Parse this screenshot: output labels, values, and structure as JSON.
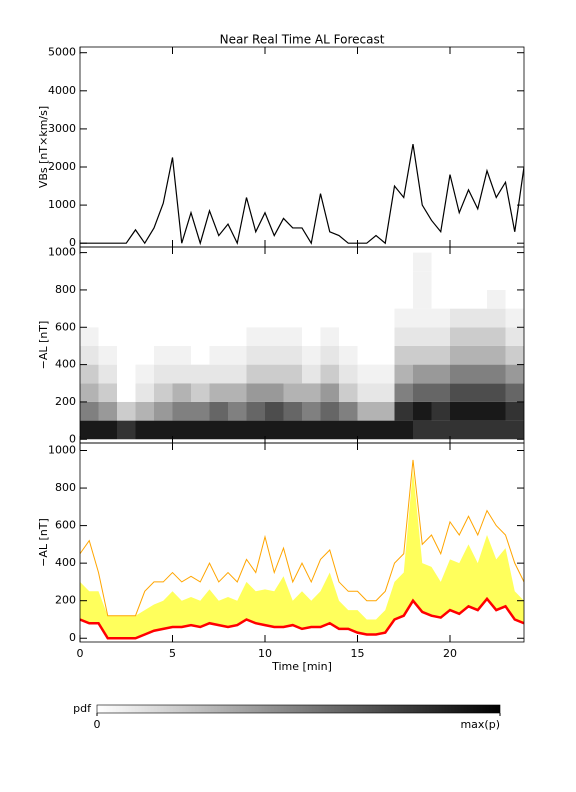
{
  "chart_data": [
    {
      "type": "line",
      "title": "Near Real Time AL Forecast",
      "ylabel": "VBs [nT×km/s]",
      "x": [
        0,
        0.5,
        1,
        1.5,
        2,
        2.5,
        3,
        3.5,
        4,
        4.5,
        5,
        5.5,
        6,
        6.5,
        7,
        7.5,
        8,
        8.5,
        9,
        9.5,
        10,
        10.5,
        11,
        11.5,
        12,
        12.5,
        13,
        13.5,
        14,
        14.5,
        15,
        15.5,
        16,
        16.5,
        17,
        17.5,
        18,
        18.5,
        19,
        19.5,
        20,
        20.5,
        21,
        21.5,
        22,
        22.5,
        23,
        23.5,
        24
      ],
      "values": [
        0,
        0,
        0,
        0,
        0,
        0,
        350,
        0,
        400,
        1050,
        2250,
        0,
        800,
        0,
        850,
        200,
        500,
        0,
        1200,
        300,
        800,
        200,
        650,
        400,
        400,
        0,
        1300,
        300,
        200,
        0,
        0,
        0,
        200,
        0,
        1500,
        1200,
        2600,
        1000,
        600,
        300,
        1800,
        800,
        1400,
        900,
        1900,
        1200,
        1600,
        300,
        2000
      ],
      "color": "#000000",
      "xlim": [
        0,
        24
      ],
      "xticks": [
        0,
        5,
        10,
        15,
        20
      ],
      "ylim": [
        -100,
        5150
      ],
      "yticks": [
        0,
        1000,
        2000,
        3000,
        4000,
        5000
      ]
    },
    {
      "type": "heatmap",
      "ylabel": "−AL [nT]",
      "x_bins": [
        0,
        1,
        2,
        3,
        4,
        5,
        6,
        7,
        8,
        9,
        10,
        11,
        12,
        13,
        14,
        15,
        16,
        17,
        18,
        19,
        20,
        21,
        22,
        23,
        24
      ],
      "y_bins": [
        0,
        100,
        200,
        300,
        400,
        500,
        600,
        700,
        800,
        900,
        1000
      ],
      "z": [
        [
          0.9,
          0.5,
          0.3,
          0.2,
          0.1,
          0.05,
          0,
          0,
          0,
          0
        ],
        [
          0.9,
          0.4,
          0.2,
          0.1,
          0.05,
          0,
          0,
          0,
          0,
          0
        ],
        [
          0.8,
          0.2,
          0,
          0,
          0,
          0,
          0,
          0,
          0,
          0
        ],
        [
          0.9,
          0.3,
          0.1,
          0.05,
          0,
          0,
          0,
          0,
          0,
          0
        ],
        [
          0.9,
          0.4,
          0.2,
          0.1,
          0.05,
          0,
          0,
          0,
          0,
          0
        ],
        [
          0.9,
          0.5,
          0.3,
          0.1,
          0.05,
          0,
          0,
          0,
          0,
          0
        ],
        [
          0.9,
          0.5,
          0.2,
          0.1,
          0,
          0,
          0,
          0,
          0,
          0
        ],
        [
          0.9,
          0.6,
          0.3,
          0.1,
          0.05,
          0,
          0,
          0,
          0,
          0
        ],
        [
          0.9,
          0.5,
          0.3,
          0.1,
          0.05,
          0,
          0,
          0,
          0,
          0
        ],
        [
          0.9,
          0.6,
          0.4,
          0.2,
          0.1,
          0.05,
          0,
          0,
          0,
          0
        ],
        [
          0.9,
          0.7,
          0.4,
          0.2,
          0.1,
          0.05,
          0,
          0,
          0,
          0
        ],
        [
          0.9,
          0.6,
          0.3,
          0.2,
          0.1,
          0.05,
          0,
          0,
          0,
          0
        ],
        [
          0.9,
          0.5,
          0.3,
          0.1,
          0.05,
          0,
          0,
          0,
          0,
          0
        ],
        [
          0.9,
          0.6,
          0.4,
          0.2,
          0.1,
          0.05,
          0,
          0,
          0,
          0
        ],
        [
          0.9,
          0.5,
          0.2,
          0.1,
          0.05,
          0,
          0,
          0,
          0,
          0
        ],
        [
          0.9,
          0.3,
          0.1,
          0.05,
          0,
          0,
          0,
          0,
          0,
          0
        ],
        [
          0.9,
          0.3,
          0.1,
          0.05,
          0,
          0,
          0,
          0,
          0,
          0
        ],
        [
          0.9,
          0.8,
          0.5,
          0.3,
          0.2,
          0.1,
          0.05,
          0,
          0,
          0
        ],
        [
          0.8,
          0.9,
          0.6,
          0.4,
          0.2,
          0.1,
          0.05,
          0.05,
          0.05,
          0.05
        ],
        [
          0.8,
          0.8,
          0.6,
          0.4,
          0.2,
          0.1,
          0.05,
          0,
          0,
          0
        ],
        [
          0.8,
          0.9,
          0.7,
          0.5,
          0.3,
          0.2,
          0.1,
          0,
          0,
          0
        ],
        [
          0.8,
          0.9,
          0.7,
          0.5,
          0.3,
          0.2,
          0.1,
          0,
          0,
          0
        ],
        [
          0.8,
          0.9,
          0.7,
          0.5,
          0.3,
          0.2,
          0.1,
          0.05,
          0,
          0
        ],
        [
          0.8,
          0.8,
          0.6,
          0.4,
          0.2,
          0.1,
          0.05,
          0,
          0,
          0
        ]
      ],
      "zlim": [
        0,
        1
      ],
      "colorbar": {
        "label": "pdf",
        "ticks": [
          0,
          {
            "value": 1,
            "label": "max(p)"
          }
        ]
      },
      "xlim": [
        0,
        24
      ],
      "xticks": [
        0,
        5,
        10,
        15,
        20
      ],
      "ylim": [
        -20,
        1030
      ],
      "yticks": [
        0,
        200,
        400,
        600,
        800,
        1000
      ]
    },
    {
      "type": "band",
      "ylabel": "−AL [nT]",
      "xlabel": "Time [min]",
      "x": [
        0,
        0.5,
        1,
        1.5,
        2,
        2.5,
        3,
        3.5,
        4,
        4.5,
        5,
        5.5,
        6,
        6.5,
        7,
        7.5,
        8,
        8.5,
        9,
        9.5,
        10,
        10.5,
        11,
        11.5,
        12,
        12.5,
        13,
        13.5,
        14,
        14.5,
        15,
        15.5,
        16,
        16.5,
        17,
        17.5,
        18,
        18.5,
        19,
        19.5,
        20,
        20.5,
        21,
        21.5,
        22,
        22.5,
        23,
        23.5,
        24
      ],
      "band": {
        "color": "#ffff40",
        "values": [
          300,
          250,
          250,
          120,
          120,
          120,
          120,
          150,
          180,
          200,
          250,
          200,
          220,
          200,
          260,
          200,
          220,
          200,
          300,
          250,
          260,
          250,
          330,
          200,
          250,
          200,
          250,
          350,
          200,
          150,
          150,
          100,
          100,
          150,
          300,
          350,
          900,
          400,
          380,
          300,
          420,
          400,
          500,
          400,
          550,
          420,
          480,
          250,
          200
        ]
      },
      "series": [
        {
          "color": "#ffa500",
          "values": [
            450,
            520,
            350,
            120,
            120,
            120,
            120,
            250,
            300,
            300,
            350,
            300,
            330,
            300,
            400,
            300,
            350,
            300,
            420,
            350,
            540,
            350,
            480,
            300,
            400,
            300,
            420,
            470,
            300,
            250,
            250,
            200,
            200,
            250,
            400,
            450,
            950,
            500,
            550,
            450,
            620,
            550,
            650,
            550,
            680,
            600,
            550,
            400,
            300
          ]
        },
        {
          "color": "#ff0000",
          "values": [
            100,
            80,
            80,
            0,
            0,
            0,
            0,
            20,
            40,
            50,
            60,
            60,
            70,
            60,
            80,
            70,
            60,
            70,
            100,
            80,
            70,
            60,
            60,
            70,
            50,
            60,
            60,
            80,
            50,
            50,
            30,
            20,
            20,
            30,
            100,
            120,
            200,
            140,
            120,
            110,
            150,
            130,
            170,
            150,
            210,
            150,
            170,
            100,
            80
          ]
        }
      ],
      "xlim": [
        0,
        24
      ],
      "xticks": [
        0,
        5,
        10,
        15,
        20
      ],
      "ylim": [
        -20,
        1040
      ],
      "yticks": [
        0,
        200,
        400,
        600,
        800,
        1000
      ]
    }
  ]
}
